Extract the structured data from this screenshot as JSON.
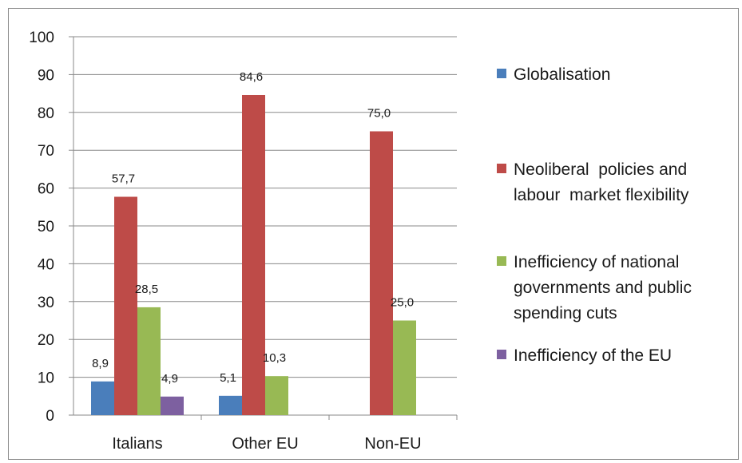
{
  "chart_data": {
    "type": "bar",
    "categories": [
      "Italians",
      "Other EU",
      "Non-EU"
    ],
    "series": [
      {
        "name": "Globalisation",
        "color": "#4a7ebb",
        "values": [
          8.9,
          5.1,
          null
        ],
        "labels": [
          "8,9",
          "5,1",
          ""
        ]
      },
      {
        "name": "Neoliberal  policies and labour  market flexibility",
        "color": "#be4b48",
        "values": [
          57.7,
          84.6,
          75.0
        ],
        "labels": [
          "57,7",
          "84,6",
          "75,0"
        ]
      },
      {
        "name": "Inefficiency of national governments and public spending cuts",
        "color": "#98b954",
        "values": [
          28.5,
          10.3,
          25.0
        ],
        "labels": [
          "28,5",
          "10,3",
          "25,0"
        ]
      },
      {
        "name": "Inefficiency of the EU",
        "color": "#7d60a0",
        "values": [
          4.9,
          null,
          null
        ],
        "labels": [
          "4,9",
          "",
          ""
        ]
      }
    ],
    "yticks": [
      "0",
      "10",
      "20",
      "30",
      "40",
      "50",
      "60",
      "70",
      "80",
      "90",
      "100"
    ],
    "ylim": [
      0,
      100
    ],
    "grid": true,
    "legend_position": "right",
    "title": "",
    "xlabel": "",
    "ylabel": ""
  }
}
